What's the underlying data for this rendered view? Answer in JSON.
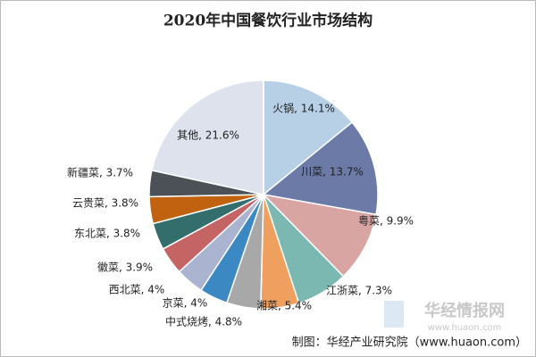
{
  "chart_data": {
    "type": "pie",
    "title": "2020年中国餐饮行业市场结构",
    "values": [
      14.1,
      13.7,
      9.9,
      7.3,
      5.4,
      4.8,
      4,
      4,
      3.9,
      3.8,
      3.8,
      3.7,
      21.6
    ],
    "value_labels": [
      "火锅, 14.1%",
      "川菜, 13.7%",
      "粤菜, 9.9%",
      "江浙菜, 7.3%",
      "湘菜, 5.4%",
      "中式烧烤, 4.8%",
      "京菜, 4%",
      "西北菜, 4%",
      "徽菜, 3.9%",
      "东北菜, 3.8%",
      "云贵菜, 3.8%",
      "新疆菜, 3.7%",
      "其他, 21.6%"
    ],
    "colors": [
      "#b7d0e6",
      "#6b7aa6",
      "#d8a5a3",
      "#7bb8b1",
      "#efa05e",
      "#a8a8a8",
      "#3b88c2",
      "#aab4d0",
      "#c46464",
      "#336e6c",
      "#c0620f",
      "#4b5156",
      "#dde2ec"
    ],
    "source": "制图：华经产业研究院（www.huaon.com）",
    "watermark": [
      "华经情报网",
      "www.huaon.com"
    ]
  }
}
